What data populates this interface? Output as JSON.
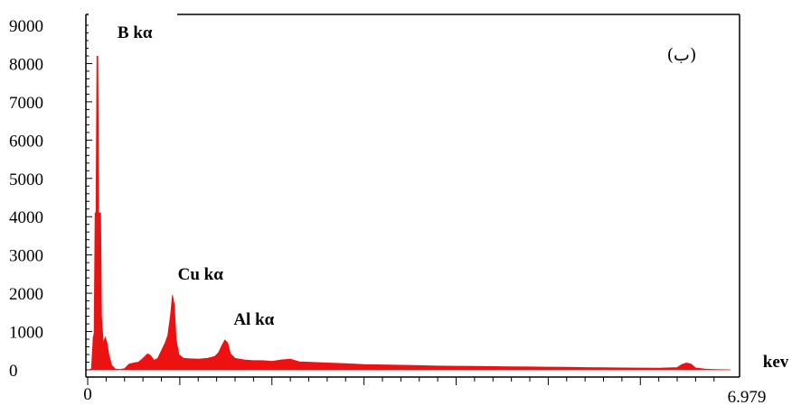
{
  "chart_data": {
    "type": "area",
    "xlim": [
      0,
      6.979
    ],
    "ylim": [
      0,
      9000
    ],
    "y_ticks": [
      0,
      1000,
      2000,
      3000,
      4000,
      5000,
      6000,
      7000,
      8000,
      9000
    ],
    "x_tick_labels": {
      "min": "0",
      "max": "6.979"
    },
    "xlabel": "kev",
    "panel_label": "(ب)",
    "fill_color": "#ee1111",
    "peak_color": "#b03020",
    "grid": false,
    "annotations": [
      {
        "text": "B kα",
        "x": 0.12,
        "y": 8200
      },
      {
        "text": "Cu kα",
        "x": 0.93,
        "y": 1960
      },
      {
        "text": "Al kα",
        "x": 1.49,
        "y": 780
      }
    ],
    "series": [
      {
        "points": [
          [
            0.0,
            0
          ],
          [
            0.04,
            20
          ],
          [
            0.06,
            850
          ],
          [
            0.07,
            950
          ],
          [
            0.08,
            4100
          ],
          [
            0.09,
            4100
          ],
          [
            0.1,
            8200
          ],
          [
            0.11,
            8200
          ],
          [
            0.12,
            4100
          ],
          [
            0.14,
            4100
          ],
          [
            0.15,
            1400
          ],
          [
            0.17,
            700
          ],
          [
            0.19,
            850
          ],
          [
            0.21,
            700
          ],
          [
            0.23,
            400
          ],
          [
            0.26,
            120
          ],
          [
            0.3,
            20
          ],
          [
            0.35,
            10
          ],
          [
            0.4,
            30
          ],
          [
            0.45,
            150
          ],
          [
            0.5,
            180
          ],
          [
            0.55,
            200
          ],
          [
            0.6,
            300
          ],
          [
            0.65,
            420
          ],
          [
            0.68,
            380
          ],
          [
            0.72,
            250
          ],
          [
            0.76,
            300
          ],
          [
            0.8,
            500
          ],
          [
            0.84,
            700
          ],
          [
            0.87,
            900
          ],
          [
            0.9,
            1450
          ],
          [
            0.92,
            1950
          ],
          [
            0.94,
            1700
          ],
          [
            0.96,
            800
          ],
          [
            0.99,
            400
          ],
          [
            1.04,
            300
          ],
          [
            1.1,
            290
          ],
          [
            1.2,
            280
          ],
          [
            1.3,
            300
          ],
          [
            1.38,
            350
          ],
          [
            1.42,
            450
          ],
          [
            1.46,
            650
          ],
          [
            1.49,
            780
          ],
          [
            1.52,
            700
          ],
          [
            1.55,
            420
          ],
          [
            1.6,
            300
          ],
          [
            1.7,
            260
          ],
          [
            1.8,
            240
          ],
          [
            1.9,
            240
          ],
          [
            2.0,
            220
          ],
          [
            2.1,
            260
          ],
          [
            2.2,
            280
          ],
          [
            2.3,
            210
          ],
          [
            2.4,
            200
          ],
          [
            2.6,
            180
          ],
          [
            2.8,
            160
          ],
          [
            3.0,
            140
          ],
          [
            3.2,
            130
          ],
          [
            3.4,
            120
          ],
          [
            3.6,
            110
          ],
          [
            3.8,
            100
          ],
          [
            4.0,
            95
          ],
          [
            4.2,
            90
          ],
          [
            4.4,
            85
          ],
          [
            4.6,
            80
          ],
          [
            4.8,
            75
          ],
          [
            5.0,
            70
          ],
          [
            5.2,
            65
          ],
          [
            5.4,
            60
          ],
          [
            5.6,
            55
          ],
          [
            5.8,
            50
          ],
          [
            6.0,
            48
          ],
          [
            6.2,
            45
          ],
          [
            6.4,
            60
          ],
          [
            6.45,
            140
          ],
          [
            6.5,
            180
          ],
          [
            6.55,
            150
          ],
          [
            6.6,
            50
          ],
          [
            6.7,
            20
          ],
          [
            6.8,
            10
          ],
          [
            6.979,
            0
          ]
        ]
      }
    ]
  }
}
